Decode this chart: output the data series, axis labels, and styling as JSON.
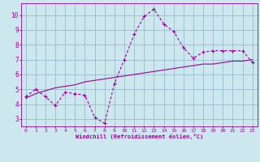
{
  "xlabel": "Windchill (Refroidissement éolien,°C)",
  "bg_color": "#cce8ee",
  "line_color": "#990099",
  "grid_color": "#99bbcc",
  "x_line1": [
    0,
    1,
    2,
    3,
    4,
    5,
    6,
    7,
    8,
    9,
    10,
    11,
    12,
    13,
    14,
    15,
    16,
    17,
    18,
    19,
    20,
    21,
    22,
    23
  ],
  "y_line1": [
    4.5,
    5.0,
    4.5,
    3.9,
    4.8,
    4.7,
    4.6,
    3.1,
    2.7,
    5.4,
    7.0,
    8.7,
    9.9,
    10.4,
    9.4,
    8.9,
    7.8,
    7.1,
    7.5,
    7.6,
    7.6,
    7.6,
    7.6,
    6.8
  ],
  "x_line2": [
    0,
    1,
    2,
    3,
    4,
    5,
    6,
    7,
    8,
    9,
    10,
    11,
    12,
    13,
    14,
    15,
    16,
    17,
    18,
    19,
    20,
    21,
    22,
    23
  ],
  "y_line2": [
    4.4,
    4.7,
    4.9,
    5.1,
    5.2,
    5.3,
    5.5,
    5.6,
    5.7,
    5.8,
    5.9,
    6.0,
    6.1,
    6.2,
    6.3,
    6.4,
    6.5,
    6.6,
    6.7,
    6.7,
    6.8,
    6.9,
    6.9,
    7.0
  ],
  "xlim": [
    -0.5,
    23.5
  ],
  "ylim": [
    2.5,
    10.8
  ],
  "yticks": [
    3,
    4,
    5,
    6,
    7,
    8,
    9,
    10
  ],
  "xticks": [
    0,
    1,
    2,
    3,
    4,
    5,
    6,
    7,
    8,
    9,
    10,
    11,
    12,
    13,
    14,
    15,
    16,
    17,
    18,
    19,
    20,
    21,
    22,
    23
  ]
}
